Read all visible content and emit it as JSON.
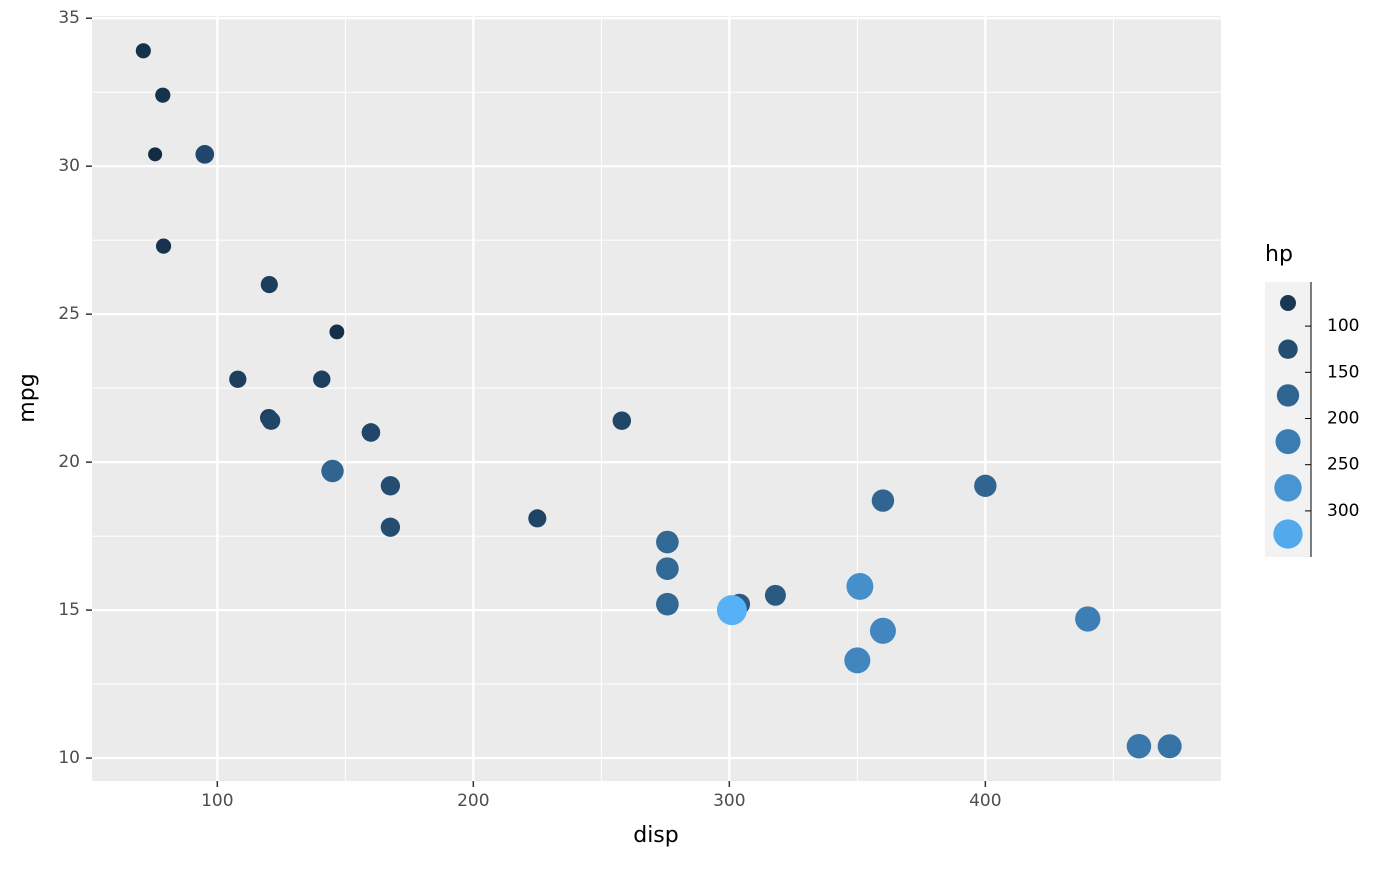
{
  "chart_data": {
    "type": "scatter",
    "x_label": "disp",
    "y_label": "mpg",
    "x": [
      160,
      160,
      108,
      258,
      360,
      225,
      360,
      146.7,
      140.8,
      167.6,
      167.6,
      275.8,
      275.8,
      275.8,
      472,
      460,
      440,
      78.7,
      75.7,
      71.1,
      120.1,
      318,
      304,
      350,
      400,
      79,
      120.3,
      95.1,
      351,
      145,
      301,
      121
    ],
    "y": [
      21.0,
      21.0,
      22.8,
      21.4,
      18.7,
      18.1,
      14.3,
      24.4,
      22.8,
      19.2,
      17.8,
      16.4,
      17.3,
      15.2,
      10.4,
      10.4,
      14.7,
      32.4,
      30.4,
      33.9,
      21.5,
      15.5,
      15.2,
      13.3,
      19.2,
      27.3,
      26.0,
      30.4,
      15.8,
      19.7,
      15.0,
      21.4
    ],
    "size": [
      110,
      110,
      93,
      110,
      175,
      105,
      245,
      62,
      95,
      123,
      123,
      180,
      180,
      180,
      205,
      215,
      230,
      66,
      52,
      65,
      97,
      150,
      150,
      245,
      175,
      66,
      91,
      113,
      264,
      175,
      335,
      109
    ],
    "size_label": "hp",
    "color_low": "#132B43",
    "color_high": "#56B1F7",
    "xlim": [
      51.05,
      492.05
    ],
    "xticks": [
      100,
      200,
      300,
      400
    ],
    "xminorticks": [
      150,
      250,
      350,
      450
    ],
    "ylim": [
      9.225,
      35.075
    ],
    "yticks": [
      10,
      15,
      20,
      25,
      30,
      35
    ],
    "yminorticks": [
      12.5,
      17.5,
      22.5,
      27.5,
      32.5
    ],
    "size_legend": {
      "ticks": [
        100,
        150,
        200,
        250,
        300
      ]
    },
    "grid": true
  }
}
